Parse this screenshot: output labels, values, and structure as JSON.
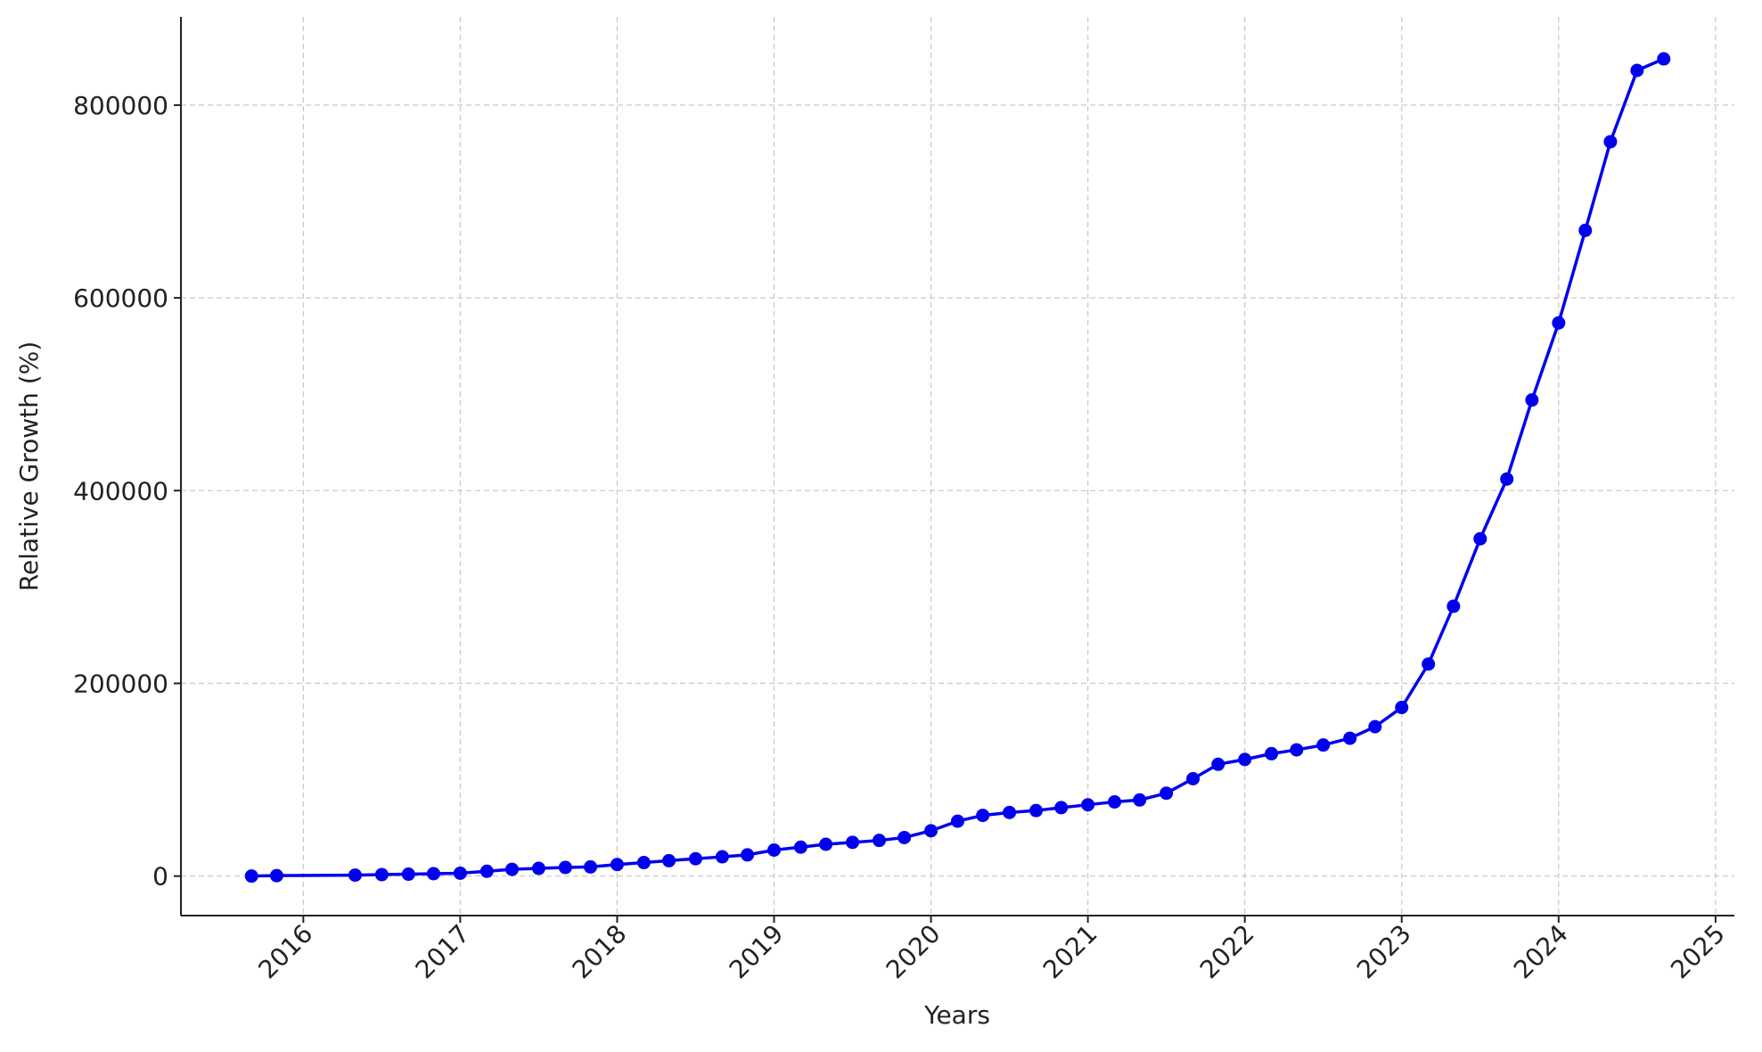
{
  "chart_data": {
    "type": "line",
    "x_label": "Years",
    "y_label": "Relative Growth (%)",
    "x": [
      2015.67,
      2015.83,
      2016.33,
      2016.5,
      2016.67,
      2016.83,
      2017.0,
      2017.17,
      2017.33,
      2017.5,
      2017.67,
      2017.83,
      2018.0,
      2018.17,
      2018.33,
      2018.5,
      2018.67,
      2018.83,
      2019.0,
      2019.17,
      2019.33,
      2019.5,
      2019.67,
      2019.83,
      2020.0,
      2020.17,
      2020.33,
      2020.5,
      2020.67,
      2020.83,
      2021.0,
      2021.17,
      2021.33,
      2021.5,
      2021.67,
      2021.83,
      2022.0,
      2022.17,
      2022.33,
      2022.5,
      2022.67,
      2022.83,
      2023.0,
      2023.17,
      2023.33,
      2023.5,
      2023.67,
      2023.83,
      2024.0,
      2024.17,
      2024.33,
      2024.5,
      2024.67
    ],
    "series": [
      {
        "name": "Relative Growth",
        "color": "#0000ee",
        "values": [
          0,
          500,
          1000,
          1500,
          2000,
          2500,
          3000,
          5000,
          7000,
          8000,
          9000,
          9500,
          12000,
          14000,
          16000,
          18000,
          20000,
          22000,
          27000,
          30000,
          33000,
          35000,
          37000,
          40000,
          47000,
          57000,
          63000,
          66000,
          68000,
          71000,
          74000,
          77000,
          79000,
          86000,
          101000,
          116000,
          121000,
          127000,
          131000,
          136000,
          143000,
          155000,
          175000,
          220000,
          280000,
          350000,
          412000,
          494000,
          574000,
          670000,
          762000,
          836000,
          848000
        ]
      }
    ],
    "xlim": [
      2015.22,
      2025.12
    ],
    "xticks": [
      2016,
      2017,
      2018,
      2019,
      2020,
      2021,
      2022,
      2023,
      2024,
      2025
    ],
    "ylim": [
      -41000,
      891500
    ],
    "yticks": [
      0,
      200000,
      400000,
      600000,
      800000
    ],
    "grid": true
  }
}
